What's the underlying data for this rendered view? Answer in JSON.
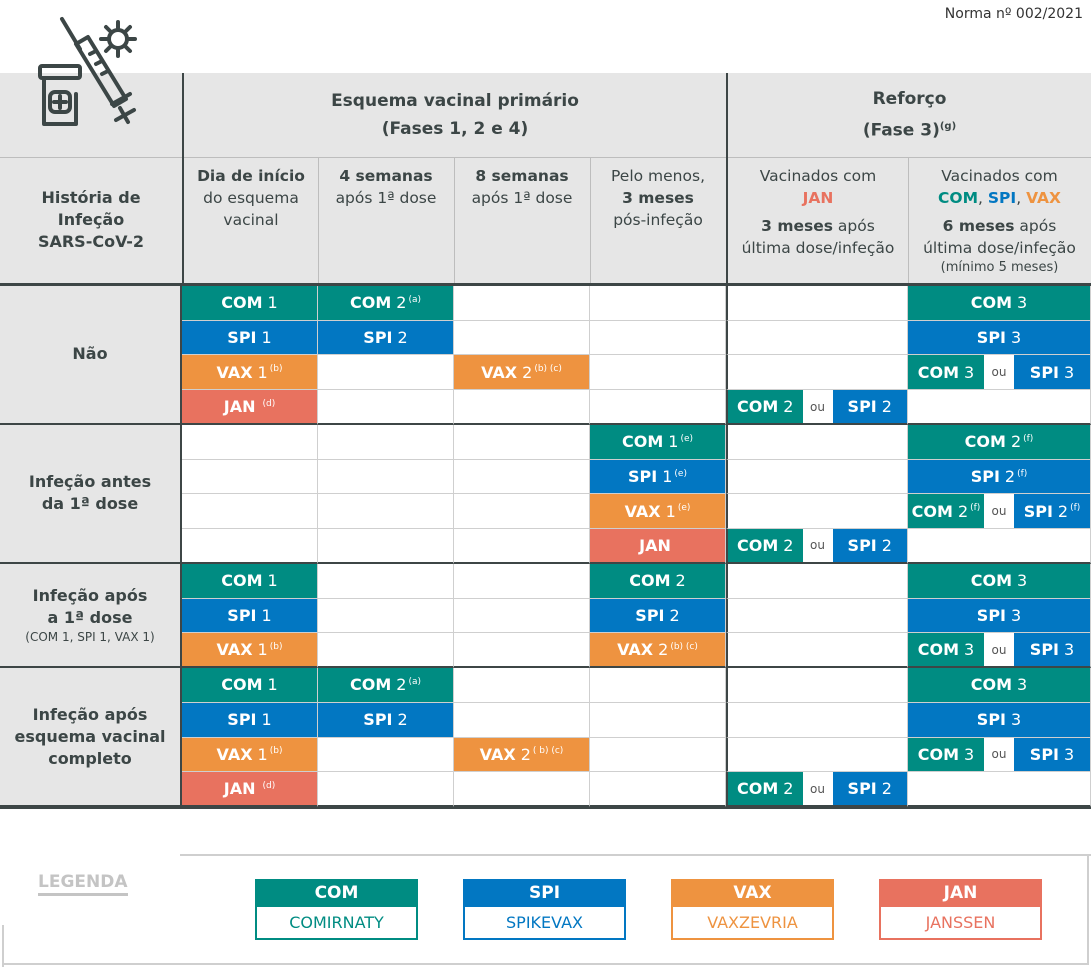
{
  "doc_ref": "Norma nº 002/2021",
  "colors": {
    "COM": "#008c82",
    "SPI": "#0277c2",
    "VAX": "#ee9340",
    "JAN": "#e8725f"
  },
  "header": {
    "history_label": [
      "História de",
      "Infeção",
      "SARS-CoV-2"
    ],
    "primary_title": "Esquema vacinal primário",
    "primary_sub": "(Fases 1, 2 e 4)",
    "booster_title": "Reforço",
    "booster_sub": "(Fase 3)",
    "booster_note": "(g)",
    "col1": {
      "bold": "Dia de início",
      "l2": "do esquema",
      "l3": "vacinal"
    },
    "col2": {
      "bold": "4 semanas",
      "l2": "após 1ª dose"
    },
    "col3": {
      "bold": "8 semanas",
      "l2": "após 1ª dose"
    },
    "col4": {
      "l1": "Pelo menos,",
      "bold": "3 meses",
      "l3": "pós-infeção"
    },
    "col5": {
      "l1": "Vacinados com",
      "vac": "JAN",
      "bold": "3 meses",
      "after": "após",
      "l4": "última dose/infeção"
    },
    "col6": {
      "l1": "Vacinados com",
      "vac1": "COM",
      "vac2": "SPI",
      "vac3": "VAX",
      "sep": ",",
      "bold": "6 meses",
      "after": "após",
      "l4": "última dose/infeção",
      "l5": "(mínimo 5 meses)"
    }
  },
  "or_label": "ou",
  "groups": [
    {
      "label": [
        "Não"
      ],
      "rows": [
        [
          [
            {
              "code": "COM",
              "num": "1"
            }
          ],
          [
            {
              "code": "COM",
              "num": "2",
              "sup": "(a)"
            }
          ],
          [],
          [],
          [],
          [
            {
              "code": "COM",
              "num": "3"
            }
          ]
        ],
        [
          [
            {
              "code": "SPI",
              "num": "1"
            }
          ],
          [
            {
              "code": "SPI",
              "num": "2"
            }
          ],
          [],
          [],
          [],
          [
            {
              "code": "SPI",
              "num": "3"
            }
          ]
        ],
        [
          [
            {
              "code": "VAX",
              "num": "1",
              "sup": "(b)"
            }
          ],
          [],
          [
            {
              "code": "VAX",
              "num": "2",
              "sup": "(b) (c)"
            }
          ],
          [],
          [],
          [
            {
              "code": "COM",
              "num": "3"
            },
            {
              "code": "SPI",
              "num": "3"
            }
          ]
        ],
        [
          [
            {
              "code": "JAN",
              "num": "",
              "sup": "(d)"
            }
          ],
          [],
          [],
          [],
          [
            {
              "code": "COM",
              "num": "2"
            },
            {
              "code": "SPI",
              "num": "2"
            }
          ],
          []
        ]
      ]
    },
    {
      "label": [
        "Infeção antes",
        "da 1ª dose"
      ],
      "rows": [
        [
          [],
          [],
          [],
          [
            {
              "code": "COM",
              "num": "1",
              "sup": "(e)"
            }
          ],
          [],
          [
            {
              "code": "COM",
              "num": "2",
              "sup": "(f)"
            }
          ]
        ],
        [
          [],
          [],
          [],
          [
            {
              "code": "SPI",
              "num": "1",
              "sup": "(e)"
            }
          ],
          [],
          [
            {
              "code": "SPI",
              "num": "2",
              "sup": "(f)"
            }
          ]
        ],
        [
          [],
          [],
          [],
          [
            {
              "code": "VAX",
              "num": "1",
              "sup": "(e)"
            }
          ],
          [],
          [
            {
              "code": "COM",
              "num": "2",
              "sup": "(f)"
            },
            {
              "code": "SPI",
              "num": "2",
              "sup": "(f)"
            }
          ]
        ],
        [
          [],
          [],
          [],
          [
            {
              "code": "JAN",
              "num": ""
            }
          ],
          [
            {
              "code": "COM",
              "num": "2"
            },
            {
              "code": "SPI",
              "num": "2"
            }
          ],
          []
        ]
      ]
    },
    {
      "label": [
        "Infeção após",
        "a 1ª dose"
      ],
      "sublabel": "(COM 1, SPI 1, VAX 1)",
      "rows": [
        [
          [
            {
              "code": "COM",
              "num": "1"
            }
          ],
          [],
          [],
          [
            {
              "code": "COM",
              "num": "2"
            }
          ],
          [],
          [
            {
              "code": "COM",
              "num": "3"
            }
          ]
        ],
        [
          [
            {
              "code": "SPI",
              "num": "1"
            }
          ],
          [],
          [],
          [
            {
              "code": "SPI",
              "num": "2"
            }
          ],
          [],
          [
            {
              "code": "SPI",
              "num": "3"
            }
          ]
        ],
        [
          [
            {
              "code": "VAX",
              "num": "1",
              "sup": "(b)"
            }
          ],
          [],
          [],
          [
            {
              "code": "VAX",
              "num": "2",
              "sup": "(b) (c)"
            }
          ],
          [],
          [
            {
              "code": "COM",
              "num": "3"
            },
            {
              "code": "SPI",
              "num": "3"
            }
          ]
        ]
      ]
    },
    {
      "label": [
        "Infeção após",
        "esquema vacinal",
        "completo"
      ],
      "rows": [
        [
          [
            {
              "code": "COM",
              "num": "1"
            }
          ],
          [
            {
              "code": "COM",
              "num": "2",
              "sup": "(a)"
            }
          ],
          [],
          [],
          [],
          [
            {
              "code": "COM",
              "num": "3"
            }
          ]
        ],
        [
          [
            {
              "code": "SPI",
              "num": "1"
            }
          ],
          [
            {
              "code": "SPI",
              "num": "2"
            }
          ],
          [],
          [],
          [],
          [
            {
              "code": "SPI",
              "num": "3"
            }
          ]
        ],
        [
          [
            {
              "code": "VAX",
              "num": "1",
              "sup": "(b)"
            }
          ],
          [],
          [
            {
              "code": "VAX",
              "num": "2",
              "sup": "( b) (c)"
            }
          ],
          [],
          [],
          [
            {
              "code": "COM",
              "num": "3"
            },
            {
              "code": "SPI",
              "num": "3"
            }
          ]
        ],
        [
          [
            {
              "code": "JAN",
              "num": "",
              "sup": "(d)"
            }
          ],
          [],
          [],
          [],
          [
            {
              "code": "COM",
              "num": "2"
            },
            {
              "code": "SPI",
              "num": "2"
            }
          ],
          []
        ]
      ]
    }
  ],
  "legend": {
    "title": "LEGENDA",
    "items": [
      {
        "code": "COM",
        "name": "COMIRNATY"
      },
      {
        "code": "SPI",
        "name": "SPIKEVAX"
      },
      {
        "code": "VAX",
        "name": "VAXZEVRIA"
      },
      {
        "code": "JAN",
        "name": "JANSSEN"
      }
    ]
  }
}
